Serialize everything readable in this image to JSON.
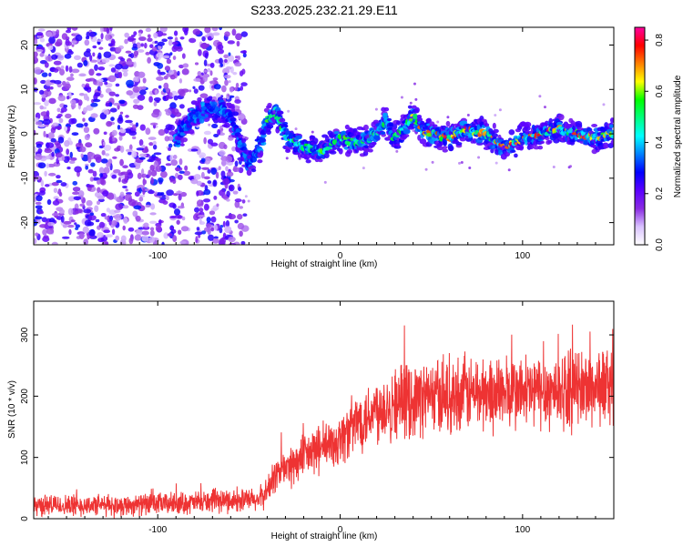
{
  "title": "S233.2025.232.21.29.E11",
  "charts": [
    {
      "type": "heatmap",
      "xlabel": "Height of straight line (km)",
      "ylabel": "Frequency (Hz)",
      "xlim": [
        -168,
        150
      ],
      "ylim": [
        -25,
        24
      ],
      "xticks": [
        -100,
        0,
        100
      ],
      "yticks": [
        -20,
        -10,
        0,
        10,
        20
      ],
      "frequency_track": {
        "x": [
          -90,
          -80,
          -70,
          -60,
          -50,
          -45,
          -40,
          -35,
          -30,
          -25,
          -20,
          -10,
          0,
          10,
          20,
          25,
          30,
          35,
          40,
          45,
          50,
          60,
          70,
          80,
          90,
          100,
          110,
          120,
          130,
          140,
          150
        ],
        "y": [
          -1,
          4,
          6,
          4,
          -7,
          -4,
          3,
          5,
          0,
          -2,
          -3,
          -4,
          -1,
          -2,
          0,
          3,
          -1,
          1,
          4,
          1,
          0,
          -1,
          1,
          0,
          -3,
          -1,
          0,
          1,
          0,
          -1,
          0
        ]
      },
      "noise_region_x": [
        -168,
        -52
      ],
      "colorbar": {
        "label": "Normalized spectral amplitude",
        "ticks": [
          "0.0",
          "0.2",
          "0.4",
          "0.6",
          "0.8"
        ],
        "range": [
          0,
          0.85
        ],
        "colors": [
          "#ffffff",
          "#d9c2ff",
          "#8a2be2",
          "#5a00ff",
          "#0000ff",
          "#0080ff",
          "#00ffff",
          "#00ff80",
          "#00ff00",
          "#ffff00",
          "#ff8000",
          "#ff0000",
          "#ff00a0"
        ]
      }
    },
    {
      "type": "line",
      "xlabel": "Height of straight line (km)",
      "ylabel": "SNR (10 * v/v)",
      "xlim": [
        -168,
        150
      ],
      "ylim": [
        0,
        355
      ],
      "xticks": [
        -100,
        0,
        100
      ],
      "yticks": [
        0,
        100,
        200,
        300
      ],
      "color": "#ee3333",
      "envelope": {
        "x": [
          -168,
          -120,
          -80,
          -60,
          -45,
          -40,
          -35,
          -25,
          -15,
          -5,
          0,
          10,
          20,
          30,
          50,
          70,
          100,
          120,
          140,
          150
        ],
        "y": [
          22,
          22,
          26,
          30,
          30,
          45,
          75,
          90,
          110,
          120,
          130,
          160,
          180,
          190,
          200,
          205,
          205,
          210,
          215,
          220
        ]
      },
      "noise_amplitude": 30
    }
  ]
}
